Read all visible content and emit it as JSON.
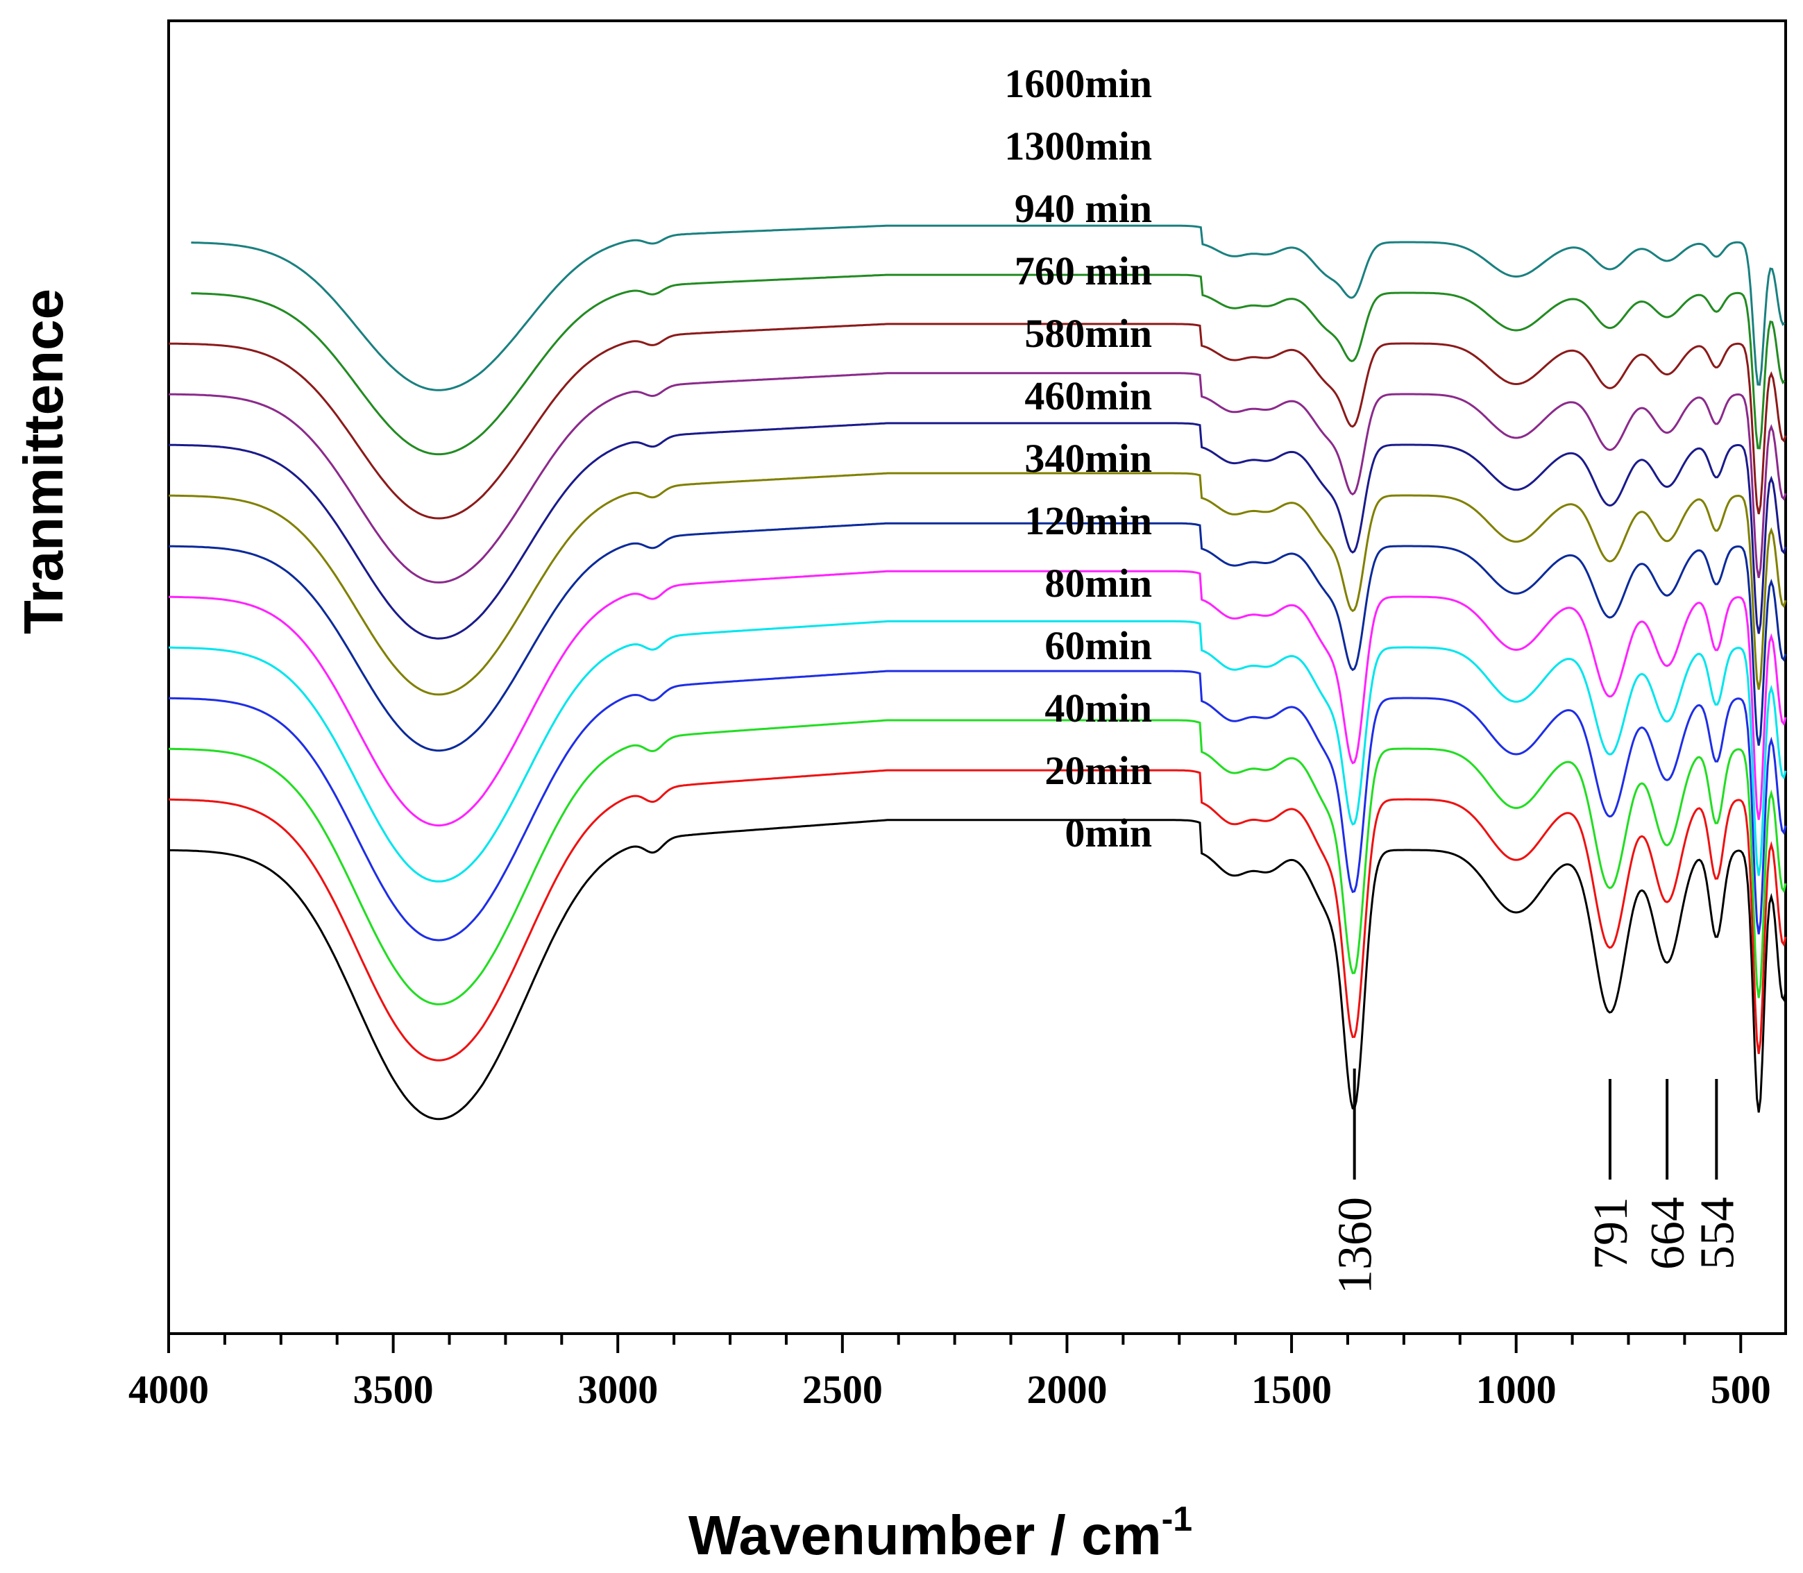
{
  "chart_data": {
    "type": "line",
    "title": "",
    "xlabel": "Wavenumber / cm",
    "xlabel_superscript": "-1",
    "ylabel": "Tranmittence",
    "xlim": [
      4000,
      400
    ],
    "x_ticks": [
      4000,
      3500,
      3000,
      2500,
      2000,
      1500,
      1000,
      500
    ],
    "x_tick_labels": [
      "4000",
      "3500",
      "3000",
      "2500",
      "2000",
      "1500",
      "1000",
      "500"
    ],
    "yticks_shown": false,
    "grid": false,
    "peak_markers": [
      {
        "position": 1360,
        "label": "1360"
      },
      {
        "position": 791,
        "label": "791"
      },
      {
        "position": 664,
        "label": "664"
      },
      {
        "position": 554,
        "label": "554"
      }
    ],
    "series": [
      {
        "name": "1600min",
        "color": "#1a8080",
        "offset": 12,
        "scale": 0.55
      },
      {
        "name": "1300min",
        "color": "#228b22",
        "offset": 11,
        "scale": 0.6
      },
      {
        "name": "940 min",
        "color": "#8b1a1a",
        "offset": 10,
        "scale": 0.65
      },
      {
        "name": "760 min",
        "color": "#8b2a8b",
        "offset": 9,
        "scale": 0.7
      },
      {
        "name": "580min",
        "color": "#1a1a8b",
        "offset": 8,
        "scale": 0.72
      },
      {
        "name": "460min",
        "color": "#808000",
        "offset": 7,
        "scale": 0.74
      },
      {
        "name": "340min",
        "color": "#0b2a9a",
        "offset": 6,
        "scale": 0.76
      },
      {
        "name": "120min",
        "color": "#ff22ff",
        "offset": 5,
        "scale": 0.85
      },
      {
        "name": "80min",
        "color": "#00e5ee",
        "offset": 4,
        "scale": 0.87
      },
      {
        "name": "60min",
        "color": "#1e2ee6",
        "offset": 3,
        "scale": 0.9
      },
      {
        "name": "40min",
        "color": "#22dd22",
        "offset": 2,
        "scale": 0.95
      },
      {
        "name": "20min",
        "color": "#ee1111",
        "offset": 1,
        "scale": 0.97
      },
      {
        "name": "0min",
        "color": "#000000",
        "offset": 0,
        "scale": 1.0
      }
    ]
  }
}
